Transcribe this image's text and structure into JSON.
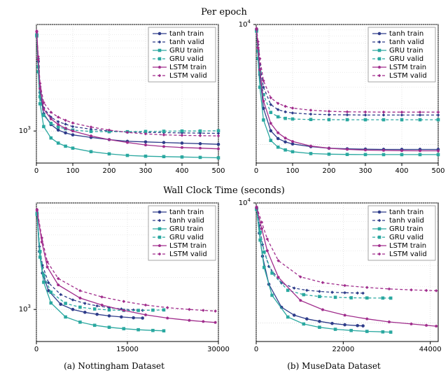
{
  "titles": {
    "per_epoch": "Per epoch",
    "wall_clock": "Wall Clock Time (seconds)",
    "caption_a": "(a) Nottingham Dataset",
    "caption_b": "(b) MuseData Dataset"
  },
  "colors": {
    "tanh": "#2e3c8a",
    "gru": "#2aa8a0",
    "lstm": "#a02c8c",
    "background": "#ffffff",
    "axis": "#000000",
    "grid": "#c8c8c8"
  },
  "legend_labels": {
    "tanh_train": "tanh train",
    "tanh_valid": "tanh valid",
    "gru_train": "GRU train",
    "gru_valid": "GRU valid",
    "lstm_train": "LSTM train",
    "lstm_valid": "LSTM valid"
  },
  "style": {
    "line_width": 1.3,
    "marker_size": 3.2,
    "valid_dash": "4 3",
    "legend_fontsize": 9,
    "title_fontsize": 13,
    "tick_fontsize": 10,
    "panel_aspect": 0.74
  },
  "panels": {
    "top_left": {
      "type": "line",
      "xlim": [
        0,
        500
      ],
      "xticks": [
        0,
        100,
        200,
        300,
        400,
        500
      ],
      "yscale": "log",
      "ylim": [
        500,
        10000
      ],
      "yticks_log": [
        1000
      ],
      "ytick_labels": [
        "10^3"
      ],
      "grid": true,
      "series": {
        "tanh_train": {
          "color": "tanh",
          "style": "solid",
          "marker": "circle",
          "x": [
            1,
            5,
            10,
            20,
            40,
            60,
            80,
            100,
            150,
            200,
            250,
            300,
            350,
            400,
            450,
            500
          ],
          "y": [
            8000,
            4500,
            2300,
            1450,
            1150,
            1020,
            960,
            920,
            870,
            830,
            800,
            790,
            780,
            770,
            760,
            750
          ]
        },
        "tanh_valid": {
          "color": "tanh",
          "style": "dashed",
          "marker": "diamond",
          "x": [
            1,
            5,
            10,
            20,
            40,
            60,
            80,
            100,
            150,
            200,
            250,
            300,
            350,
            400,
            450,
            500
          ],
          "y": [
            8200,
            4800,
            2600,
            1650,
            1350,
            1220,
            1160,
            1100,
            1040,
            1000,
            980,
            970,
            965,
            960,
            955,
            950
          ]
        },
        "gru_train": {
          "color": "gru",
          "style": "solid",
          "marker": "square",
          "x": [
            1,
            5,
            10,
            20,
            40,
            60,
            80,
            100,
            150,
            200,
            250,
            300,
            350,
            400,
            450,
            500
          ],
          "y": [
            7800,
            3600,
            1800,
            1100,
            860,
            770,
            720,
            690,
            640,
            610,
            590,
            580,
            575,
            570,
            565,
            560
          ]
        },
        "gru_valid": {
          "color": "gru",
          "style": "dashed",
          "marker": "square",
          "x": [
            1,
            5,
            10,
            20,
            40,
            60,
            80,
            100,
            150,
            200,
            250,
            300,
            350,
            400,
            450,
            500
          ],
          "y": [
            8000,
            4000,
            2100,
            1400,
            1180,
            1090,
            1050,
            1020,
            990,
            985,
            985,
            990,
            995,
            1000,
            1000,
            1005
          ]
        },
        "lstm_train": {
          "color": "lstm",
          "style": "solid",
          "marker": "pentagon",
          "x": [
            1,
            5,
            10,
            20,
            40,
            60,
            80,
            100,
            150,
            200,
            250,
            300,
            350,
            400,
            450,
            500
          ],
          "y": [
            8500,
            4700,
            2500,
            1600,
            1300,
            1150,
            1060,
            1000,
            900,
            830,
            780,
            740,
            715,
            700,
            690,
            680
          ]
        },
        "lstm_valid": {
          "color": "lstm",
          "style": "dashed",
          "marker": "diamond",
          "x": [
            1,
            5,
            10,
            20,
            40,
            60,
            80,
            100,
            150,
            200,
            250,
            300,
            350,
            400,
            450,
            500
          ],
          "y": [
            8700,
            5000,
            2800,
            1850,
            1500,
            1350,
            1260,
            1190,
            1090,
            1020,
            970,
            940,
            920,
            910,
            905,
            900
          ]
        }
      }
    },
    "top_right": {
      "type": "line",
      "xlim": [
        0,
        500
      ],
      "xticks": [
        0,
        100,
        200,
        300,
        400,
        500
      ],
      "yscale": "log",
      "ylim": [
        700,
        10000
      ],
      "yticks_log": [
        10000
      ],
      "ytick_labels": [
        "10^4"
      ],
      "grid": true,
      "series": {
        "tanh_train": {
          "color": "tanh",
          "style": "solid",
          "marker": "circle",
          "x": [
            1,
            5,
            10,
            20,
            40,
            60,
            80,
            100,
            150,
            200,
            250,
            300,
            350,
            400,
            450,
            500
          ],
          "y": [
            9000,
            6000,
            3800,
            2000,
            1300,
            1120,
            1050,
            1010,
            960,
            930,
            920,
            915,
            910,
            910,
            910,
            910
          ]
        },
        "tanh_valid": {
          "color": "tanh",
          "style": "dashed",
          "marker": "diamond",
          "x": [
            1,
            5,
            10,
            20,
            40,
            60,
            80,
            100,
            150,
            200,
            250,
            300,
            350,
            400,
            450,
            500
          ],
          "y": [
            9200,
            6800,
            4600,
            3000,
            2150,
            1950,
            1870,
            1830,
            1790,
            1770,
            1765,
            1760,
            1760,
            1760,
            1760,
            1760
          ]
        },
        "gru_train": {
          "color": "gru",
          "style": "solid",
          "marker": "square",
          "x": [
            1,
            5,
            10,
            20,
            40,
            60,
            80,
            100,
            150,
            200,
            250,
            300,
            350,
            400,
            450,
            500
          ],
          "y": [
            8800,
            5200,
            3000,
            1600,
            1080,
            950,
            900,
            870,
            840,
            830,
            826,
            824,
            823,
            823,
            823,
            823
          ]
        },
        "gru_valid": {
          "color": "gru",
          "style": "dashed",
          "marker": "square",
          "x": [
            1,
            5,
            10,
            20,
            40,
            60,
            80,
            100,
            150,
            200,
            250,
            300,
            350,
            400,
            450,
            500
          ],
          "y": [
            9000,
            6000,
            4000,
            2600,
            1850,
            1700,
            1650,
            1630,
            1615,
            1610,
            1608,
            1607,
            1607,
            1607,
            1607,
            1607
          ]
        },
        "lstm_train": {
          "color": "lstm",
          "style": "solid",
          "marker": "pentagon",
          "x": [
            1,
            5,
            10,
            20,
            40,
            60,
            80,
            100,
            150,
            200,
            250,
            300,
            350,
            400,
            450,
            500
          ],
          "y": [
            9100,
            6400,
            4200,
            2300,
            1500,
            1250,
            1130,
            1060,
            970,
            930,
            910,
            898,
            892,
            888,
            886,
            885
          ]
        },
        "lstm_valid": {
          "color": "lstm",
          "style": "dashed",
          "marker": "diamond",
          "x": [
            1,
            5,
            10,
            20,
            40,
            60,
            80,
            100,
            150,
            200,
            250,
            300,
            350,
            400,
            450,
            500
          ],
          "y": [
            9300,
            7200,
            5200,
            3400,
            2450,
            2200,
            2080,
            2010,
            1930,
            1890,
            1870,
            1865,
            1862,
            1860,
            1860,
            1860
          ]
        }
      }
    },
    "bottom_left": {
      "type": "line",
      "xlim": [
        0,
        30000
      ],
      "xticks": [
        0,
        15000,
        30000
      ],
      "yscale": "log",
      "ylim": [
        500,
        10000
      ],
      "yticks_log": [
        1000
      ],
      "ytick_labels": [
        "10^3"
      ],
      "grid": true,
      "series": {
        "tanh_train": {
          "color": "tanh",
          "style": "solid",
          "marker": "circle",
          "x": [
            100,
            500,
            1000,
            2000,
            4000,
            6000,
            8000,
            10000,
            12000,
            14000,
            16000,
            17500
          ],
          "y": [
            8000,
            3500,
            2200,
            1500,
            1120,
            1000,
            940,
            900,
            870,
            850,
            835,
            830
          ]
        },
        "tanh_valid": {
          "color": "tanh",
          "style": "dashed",
          "marker": "diamond",
          "x": [
            100,
            500,
            1000,
            2000,
            4000,
            6000,
            8000,
            10000,
            12000,
            14000,
            16000,
            17500
          ],
          "y": [
            8200,
            3900,
            2600,
            1780,
            1380,
            1230,
            1140,
            1080,
            1040,
            1010,
            990,
            980
          ]
        },
        "gru_train": {
          "color": "gru",
          "style": "solid",
          "marker": "square",
          "x": [
            100,
            600,
            1200,
            2400,
            4800,
            7200,
            9600,
            12000,
            14400,
            16800,
            19200,
            21000
          ],
          "y": [
            7800,
            3100,
            1800,
            1150,
            850,
            760,
            710,
            680,
            660,
            645,
            635,
            630
          ]
        },
        "gru_valid": {
          "color": "gru",
          "style": "dashed",
          "marker": "square",
          "x": [
            100,
            600,
            1200,
            2400,
            4800,
            7200,
            9600,
            12000,
            14400,
            16800,
            19200,
            21000
          ],
          "y": [
            8000,
            3500,
            2100,
            1450,
            1140,
            1050,
            1010,
            990,
            980,
            980,
            985,
            990
          ]
        },
        "lstm_train": {
          "color": "lstm",
          "style": "solid",
          "marker": "pentagon",
          "x": [
            100,
            900,
            1800,
            3600,
            7200,
            10800,
            14400,
            18000,
            21600,
            25200,
            27500,
            29500
          ],
          "y": [
            8500,
            4300,
            2500,
            1700,
            1280,
            1100,
            980,
            890,
            830,
            790,
            770,
            755
          ]
        },
        "lstm_valid": {
          "color": "lstm",
          "style": "dashed",
          "marker": "diamond",
          "x": [
            100,
            900,
            1800,
            3600,
            7200,
            10800,
            14400,
            18000,
            21600,
            25200,
            27500,
            29500
          ],
          "y": [
            8700,
            4700,
            2800,
            1950,
            1500,
            1310,
            1190,
            1100,
            1040,
            1000,
            980,
            965
          ]
        }
      }
    },
    "bottom_right": {
      "type": "line",
      "xlim": [
        0,
        46000
      ],
      "xticks": [
        0,
        22000,
        44000
      ],
      "yscale": "log",
      "ylim": [
        700,
        10000
      ],
      "yticks_log": [
        10000
      ],
      "ytick_labels": [
        "10^4"
      ],
      "grid": true,
      "series": {
        "tanh_train": {
          "color": "tanh",
          "style": "solid",
          "marker": "circle",
          "x": [
            100,
            800,
            1600,
            3200,
            6400,
            9600,
            12800,
            16000,
            19200,
            22400,
            25600,
            27000
          ],
          "y": [
            9000,
            5600,
            3600,
            2100,
            1350,
            1160,
            1080,
            1030,
            990,
            965,
            950,
            945
          ]
        },
        "tanh_valid": {
          "color": "tanh",
          "style": "dashed",
          "marker": "diamond",
          "x": [
            100,
            800,
            1600,
            3200,
            6400,
            9600,
            12800,
            16000,
            19200,
            22400,
            25600,
            27000
          ],
          "y": [
            9200,
            6500,
            4500,
            2950,
            2150,
            1950,
            1870,
            1830,
            1800,
            1785,
            1775,
            1770
          ]
        },
        "gru_train": {
          "color": "gru",
          "style": "solid",
          "marker": "square",
          "x": [
            100,
            1000,
            2000,
            4000,
            8000,
            12000,
            16000,
            20000,
            24000,
            28000,
            32000,
            34000
          ],
          "y": [
            8800,
            4900,
            2900,
            1700,
            1120,
            980,
            920,
            885,
            865,
            850,
            842,
            838
          ]
        },
        "gru_valid": {
          "color": "gru",
          "style": "dashed",
          "marker": "square",
          "x": [
            100,
            1000,
            2000,
            4000,
            8000,
            12000,
            16000,
            20000,
            24000,
            28000,
            32000,
            34000
          ],
          "y": [
            9000,
            5700,
            3900,
            2600,
            1870,
            1720,
            1660,
            1635,
            1620,
            1615,
            1612,
            1610
          ]
        },
        "lstm_train": {
          "color": "lstm",
          "style": "solid",
          "marker": "pentagon",
          "x": [
            100,
            1400,
            2800,
            5600,
            11200,
            16800,
            22400,
            28000,
            33600,
            39200,
            43000,
            45500
          ],
          "y": [
            9100,
            6100,
            4000,
            2400,
            1540,
            1290,
            1160,
            1080,
            1020,
            980,
            955,
            940
          ]
        },
        "lstm_valid": {
          "color": "lstm",
          "style": "dashed",
          "marker": "diamond",
          "x": [
            100,
            1400,
            2800,
            5600,
            11200,
            16800,
            22400,
            28000,
            33600,
            39200,
            43000,
            45500
          ],
          "y": [
            9300,
            6900,
            5000,
            3300,
            2420,
            2170,
            2050,
            1975,
            1920,
            1885,
            1865,
            1855
          ]
        }
      }
    }
  }
}
